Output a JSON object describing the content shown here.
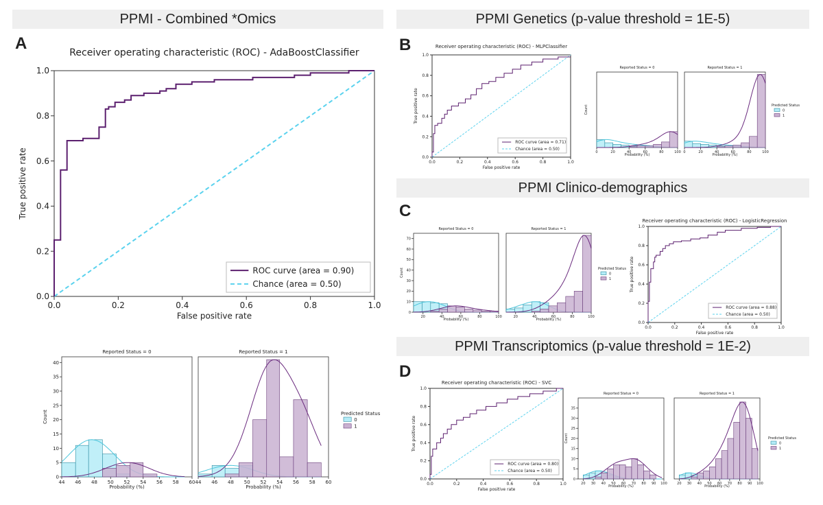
{
  "panels": {
    "a": {
      "title": "PPMI - Combined *Omics",
      "letter": "A"
    },
    "b": {
      "title": "PPMI Genetics (p-value threshold = 1E-5)",
      "letter": "B"
    },
    "c": {
      "title": "PPMI Clinico-demographics",
      "letter": "C"
    },
    "d": {
      "title": "PPMI Transcriptomics (p-value threshold = 1E-2)",
      "letter": "D"
    }
  },
  "colors": {
    "roc": "#5b1f6e",
    "chance": "#5ad2ee",
    "class0_fill": "#b5ecf7",
    "class0_edge": "#2a8aa0",
    "class1_fill": "#c9b1d1",
    "class1_edge": "#6a3d7a",
    "kde0": "#4cc6dc",
    "kde1": "#6a2a7e"
  },
  "chart_data": [
    {
      "id": "A_roc",
      "type": "line",
      "title": "Receiver operating characteristic (ROC) - AdaBoostClassifier",
      "xlabel": "False positive rate",
      "ylabel": "True positive rate",
      "xlim": [
        0,
        1
      ],
      "ylim": [
        0,
        1
      ],
      "xticks": [
        "0.0",
        "0.2",
        "0.4",
        "0.6",
        "0.8",
        "1.0"
      ],
      "yticks": [
        "0.0",
        "0.2",
        "0.4",
        "0.6",
        "0.8",
        "1.0"
      ],
      "legend": [
        "ROC curve (area = 0.90)",
        "Chance (area = 0.50)"
      ],
      "roc_points": [
        [
          0,
          0
        ],
        [
          0,
          0.25
        ],
        [
          0.02,
          0.25
        ],
        [
          0.02,
          0.56
        ],
        [
          0.04,
          0.56
        ],
        [
          0.04,
          0.69
        ],
        [
          0.09,
          0.69
        ],
        [
          0.09,
          0.7
        ],
        [
          0.14,
          0.7
        ],
        [
          0.14,
          0.75
        ],
        [
          0.16,
          0.75
        ],
        [
          0.16,
          0.83
        ],
        [
          0.17,
          0.83
        ],
        [
          0.17,
          0.84
        ],
        [
          0.19,
          0.84
        ],
        [
          0.19,
          0.86
        ],
        [
          0.22,
          0.86
        ],
        [
          0.22,
          0.87
        ],
        [
          0.24,
          0.87
        ],
        [
          0.24,
          0.89
        ],
        [
          0.28,
          0.89
        ],
        [
          0.28,
          0.9
        ],
        [
          0.33,
          0.9
        ],
        [
          0.33,
          0.91
        ],
        [
          0.35,
          0.91
        ],
        [
          0.35,
          0.92
        ],
        [
          0.38,
          0.92
        ],
        [
          0.38,
          0.94
        ],
        [
          0.43,
          0.94
        ],
        [
          0.43,
          0.95
        ],
        [
          0.5,
          0.95
        ],
        [
          0.5,
          0.96
        ],
        [
          0.62,
          0.96
        ],
        [
          0.62,
          0.97
        ],
        [
          0.75,
          0.97
        ],
        [
          0.75,
          0.98
        ],
        [
          0.8,
          0.98
        ],
        [
          0.8,
          0.99
        ],
        [
          0.92,
          0.99
        ],
        [
          0.92,
          1.0
        ],
        [
          1.0,
          1.0
        ]
      ]
    },
    {
      "id": "A_hist",
      "type": "bar",
      "panel_titles": [
        "Reported Status = 0",
        "Reported Status = 1"
      ],
      "xlabel": "Probability (%)",
      "ylabel": "Count",
      "xlim": [
        44,
        60
      ],
      "ylim": [
        0,
        42
      ],
      "xticks": [
        "44",
        "46",
        "48",
        "50",
        "52",
        "54",
        "56",
        "58",
        "60"
      ],
      "yticks": [
        "0",
        "5",
        "10",
        "15",
        "20",
        "25",
        "30",
        "35",
        "40"
      ],
      "bin_edges": [
        44,
        45.7,
        47.3,
        49,
        50.7,
        52.4,
        54,
        55.7,
        57.4,
        59.1
      ],
      "status0": {
        "class0": [
          5,
          11,
          13,
          8,
          1,
          0,
          0,
          0,
          0
        ],
        "class1": [
          0,
          0,
          0,
          3,
          4,
          5,
          1,
          0,
          0
        ]
      },
      "status1": {
        "class0": [
          1,
          4,
          3,
          4,
          0,
          0,
          0,
          0,
          0
        ],
        "class1": [
          0,
          0,
          1,
          5,
          20,
          41,
          7,
          27,
          5
        ]
      },
      "legend_title": "Predicted Status",
      "legend": [
        "0",
        "1"
      ]
    },
    {
      "id": "B_roc",
      "type": "line",
      "title": "Receiver operating characteristic (ROC) - MLPClassifier",
      "xlabel": "False positive rate",
      "ylabel": "True positive rate",
      "xlim": [
        0,
        1
      ],
      "ylim": [
        0,
        1
      ],
      "xticks": [
        "0.0",
        "0.2",
        "0.4",
        "0.6",
        "0.8",
        "1.0"
      ],
      "yticks": [
        "0.0",
        "0.2",
        "0.4",
        "0.6",
        "0.8",
        "1.0"
      ],
      "legend": [
        "ROC curve (area = 0.71)",
        "Chance (area = 0.50)"
      ],
      "roc_points": [
        [
          0,
          0
        ],
        [
          0,
          0.05
        ],
        [
          0.01,
          0.05
        ],
        [
          0.01,
          0.23
        ],
        [
          0.02,
          0.23
        ],
        [
          0.02,
          0.31
        ],
        [
          0.04,
          0.31
        ],
        [
          0.04,
          0.33
        ],
        [
          0.07,
          0.33
        ],
        [
          0.07,
          0.38
        ],
        [
          0.09,
          0.38
        ],
        [
          0.09,
          0.42
        ],
        [
          0.11,
          0.42
        ],
        [
          0.11,
          0.46
        ],
        [
          0.14,
          0.46
        ],
        [
          0.14,
          0.5
        ],
        [
          0.19,
          0.5
        ],
        [
          0.19,
          0.53
        ],
        [
          0.24,
          0.53
        ],
        [
          0.24,
          0.57
        ],
        [
          0.28,
          0.57
        ],
        [
          0.28,
          0.61
        ],
        [
          0.32,
          0.61
        ],
        [
          0.32,
          0.67
        ],
        [
          0.36,
          0.67
        ],
        [
          0.36,
          0.72
        ],
        [
          0.41,
          0.72
        ],
        [
          0.41,
          0.74
        ],
        [
          0.46,
          0.74
        ],
        [
          0.46,
          0.78
        ],
        [
          0.52,
          0.78
        ],
        [
          0.52,
          0.82
        ],
        [
          0.58,
          0.82
        ],
        [
          0.58,
          0.86
        ],
        [
          0.64,
          0.86
        ],
        [
          0.64,
          0.9
        ],
        [
          0.72,
          0.9
        ],
        [
          0.72,
          0.93
        ],
        [
          0.8,
          0.93
        ],
        [
          0.8,
          0.96
        ],
        [
          0.91,
          0.96
        ],
        [
          0.91,
          0.98
        ],
        [
          1.0,
          0.98
        ]
      ]
    },
    {
      "id": "B_hist",
      "type": "bar",
      "panel_titles": [
        "Reported Status = 0",
        "Reported Status = 1"
      ],
      "xlabel": "Probability (%)",
      "ylabel": "Count",
      "xlim": [
        0,
        100
      ],
      "ylim": [
        0,
        95
      ],
      "xticks": [
        "0",
        "20",
        "40",
        "60",
        "80",
        "100"
      ],
      "bin_edges": [
        0,
        10,
        20,
        30,
        40,
        50,
        60,
        70,
        80,
        90,
        100
      ],
      "status0": {
        "class0": [
          10,
          6,
          4,
          3,
          2,
          2,
          1,
          1,
          0,
          0
        ],
        "class1": [
          0,
          0,
          0,
          0,
          1,
          2,
          2,
          4,
          7,
          20
        ]
      },
      "status1": {
        "class0": [
          8,
          5,
          4,
          3,
          2,
          2,
          1,
          1,
          0,
          0
        ],
        "class1": [
          0,
          0,
          0,
          0,
          1,
          2,
          3,
          6,
          14,
          92
        ]
      },
      "legend_title": "Predicted Status",
      "legend": [
        "0",
        "1"
      ]
    },
    {
      "id": "C_hist",
      "type": "bar",
      "panel_titles": [
        "Reported Status = 0",
        "Reported Status = 1"
      ],
      "xlabel": "Probability (%)",
      "ylabel": "Count",
      "xlim": [
        10,
        100
      ],
      "ylim": [
        0,
        75
      ],
      "xticks": [
        "20",
        "40",
        "60",
        "80",
        "100"
      ],
      "yticks": [
        "0",
        "10",
        "20",
        "30",
        "40",
        "50",
        "60",
        "70"
      ],
      "bin_edges": [
        10,
        19,
        28,
        37,
        46,
        55,
        64,
        73,
        82,
        91,
        100
      ],
      "status0": {
        "class0": [
          10,
          10,
          9,
          8,
          0,
          0,
          0,
          0,
          0,
          0
        ],
        "class1": [
          0,
          0,
          1,
          3,
          6,
          5,
          3,
          2,
          1,
          1
        ]
      },
      "status1": {
        "class0": [
          3,
          4,
          7,
          10,
          9,
          0,
          0,
          0,
          0,
          0
        ],
        "class1": [
          0,
          0,
          0,
          1,
          3,
          6,
          9,
          15,
          20,
          73
        ]
      },
      "legend_title": "Predicted Status",
      "legend": [
        "0",
        "1"
      ]
    },
    {
      "id": "C_roc",
      "type": "line",
      "title": "Receiver operating characteristic (ROC) - LogisticRegression",
      "xlabel": "False positive rate",
      "ylabel": "True positive rate",
      "xlim": [
        0,
        1
      ],
      "ylim": [
        0,
        1
      ],
      "xticks": [
        "0.0",
        "0.2",
        "0.4",
        "0.6",
        "0.8",
        "1.0"
      ],
      "yticks": [
        "0.0",
        "0.2",
        "0.4",
        "0.6",
        "0.8",
        "1.0"
      ],
      "legend": [
        "ROC curve (area = 0.88)",
        "Chance (area = 0.50)"
      ],
      "roc_points": [
        [
          0,
          0
        ],
        [
          0,
          0.22
        ],
        [
          0.01,
          0.22
        ],
        [
          0.01,
          0.42
        ],
        [
          0.02,
          0.42
        ],
        [
          0.02,
          0.56
        ],
        [
          0.04,
          0.56
        ],
        [
          0.04,
          0.63
        ],
        [
          0.05,
          0.63
        ],
        [
          0.05,
          0.68
        ],
        [
          0.06,
          0.68
        ],
        [
          0.06,
          0.7
        ],
        [
          0.09,
          0.7
        ],
        [
          0.09,
          0.74
        ],
        [
          0.11,
          0.74
        ],
        [
          0.11,
          0.77
        ],
        [
          0.13,
          0.77
        ],
        [
          0.13,
          0.8
        ],
        [
          0.16,
          0.8
        ],
        [
          0.16,
          0.82
        ],
        [
          0.19,
          0.82
        ],
        [
          0.19,
          0.84
        ],
        [
          0.25,
          0.84
        ],
        [
          0.25,
          0.85
        ],
        [
          0.32,
          0.85
        ],
        [
          0.32,
          0.87
        ],
        [
          0.39,
          0.87
        ],
        [
          0.39,
          0.88
        ],
        [
          0.45,
          0.88
        ],
        [
          0.45,
          0.91
        ],
        [
          0.52,
          0.91
        ],
        [
          0.52,
          0.94
        ],
        [
          0.58,
          0.94
        ],
        [
          0.58,
          0.96
        ],
        [
          0.7,
          0.96
        ],
        [
          0.7,
          0.98
        ],
        [
          0.82,
          0.98
        ],
        [
          0.82,
          0.99
        ],
        [
          0.92,
          0.99
        ],
        [
          0.92,
          1.0
        ],
        [
          1.0,
          1.0
        ]
      ]
    },
    {
      "id": "D_roc",
      "type": "line",
      "title": "Receiver operating characteristic (ROC) - SVC",
      "xlabel": "False positive rate",
      "ylabel": "True positive rate",
      "xlim": [
        0,
        1
      ],
      "ylim": [
        0,
        1
      ],
      "xticks": [
        "0.0",
        "0.2",
        "0.4",
        "0.6",
        "0.8",
        "1.0"
      ],
      "yticks": [
        "0.0",
        "0.2",
        "0.4",
        "0.6",
        "0.8",
        "1.0"
      ],
      "legend": [
        "ROC curve (area = 0.80)",
        "Chance (area = 0.50)"
      ],
      "roc_points": [
        [
          0,
          0
        ],
        [
          0,
          0.05
        ],
        [
          0.01,
          0.05
        ],
        [
          0.01,
          0.25
        ],
        [
          0.02,
          0.25
        ],
        [
          0.02,
          0.33
        ],
        [
          0.05,
          0.33
        ],
        [
          0.05,
          0.4
        ],
        [
          0.08,
          0.4
        ],
        [
          0.08,
          0.45
        ],
        [
          0.1,
          0.45
        ],
        [
          0.1,
          0.5
        ],
        [
          0.13,
          0.5
        ],
        [
          0.13,
          0.55
        ],
        [
          0.16,
          0.55
        ],
        [
          0.16,
          0.6
        ],
        [
          0.2,
          0.6
        ],
        [
          0.2,
          0.65
        ],
        [
          0.25,
          0.65
        ],
        [
          0.25,
          0.68
        ],
        [
          0.3,
          0.68
        ],
        [
          0.3,
          0.72
        ],
        [
          0.35,
          0.72
        ],
        [
          0.35,
          0.76
        ],
        [
          0.42,
          0.76
        ],
        [
          0.42,
          0.8
        ],
        [
          0.5,
          0.8
        ],
        [
          0.5,
          0.84
        ],
        [
          0.58,
          0.84
        ],
        [
          0.58,
          0.88
        ],
        [
          0.66,
          0.88
        ],
        [
          0.66,
          0.91
        ],
        [
          0.75,
          0.91
        ],
        [
          0.75,
          0.94
        ],
        [
          0.85,
          0.94
        ],
        [
          0.85,
          0.97
        ],
        [
          0.95,
          0.97
        ],
        [
          0.95,
          1.0
        ],
        [
          1.0,
          1.0
        ]
      ]
    },
    {
      "id": "D_hist",
      "type": "bar",
      "panel_titles": [
        "Reported Status = 0",
        "Reported Status = 1"
      ],
      "xlabel": "Probability (%)",
      "ylabel": "Count",
      "xlim": [
        15,
        100
      ],
      "ylim": [
        0,
        40
      ],
      "xticks": [
        "20",
        "30",
        "40",
        "50",
        "60",
        "70",
        "80",
        "90",
        "100"
      ],
      "yticks": [
        "0",
        "5",
        "10",
        "15",
        "20",
        "25",
        "30",
        "35"
      ],
      "bin_edges": [
        20,
        26,
        32,
        38,
        44,
        50,
        56,
        62,
        68,
        74,
        80,
        86,
        92,
        98
      ],
      "status0": {
        "class0": [
          2,
          3,
          4,
          3,
          2,
          1,
          0,
          0,
          0,
          0,
          0,
          0,
          0
        ],
        "class1": [
          0,
          0,
          1,
          3,
          5,
          7,
          7,
          6,
          10,
          7,
          4,
          2,
          0
        ]
      },
      "status1": {
        "class0": [
          2,
          3,
          2,
          1,
          0,
          0,
          0,
          0,
          0,
          0,
          0,
          0,
          0
        ],
        "class1": [
          0,
          0,
          1,
          3,
          4,
          6,
          10,
          14,
          20,
          28,
          38,
          30,
          15
        ]
      },
      "legend_title": "Predicted Status",
      "legend": [
        "0",
        "1"
      ]
    }
  ]
}
